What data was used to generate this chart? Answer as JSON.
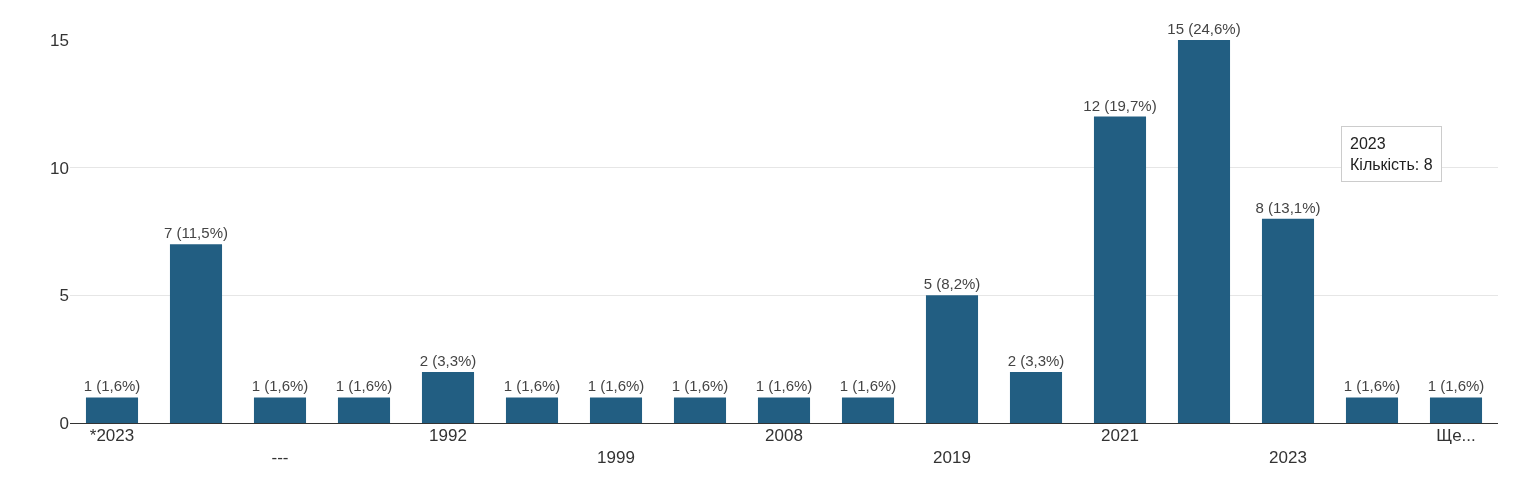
{
  "chart_data": {
    "type": "bar",
    "categories": [
      "*2023",
      null,
      "---",
      null,
      "1992",
      null,
      "1999",
      null,
      "2008",
      null,
      "2019",
      null,
      "2021",
      null,
      "2023",
      null,
      "Ще..."
    ],
    "values": [
      1,
      7,
      1,
      1,
      2,
      1,
      1,
      1,
      1,
      1,
      5,
      2,
      12,
      15,
      8,
      1,
      1
    ],
    "value_labels": [
      "1 (1,6%)",
      "7 (11,5%)",
      "1 (1,6%)",
      "1 (1,6%)",
      "2 (3,3%)",
      "1 (1,6%)",
      "1 (1,6%)",
      "1 (1,6%)",
      "1 (1,6%)",
      "1 (1,6%)",
      "5 (8,2%)",
      "2 (3,3%)",
      "12 (19,7%)",
      "15 (24,6%)",
      "8 (13,1%)",
      "1 (1,6%)",
      "1 (1,6%)"
    ],
    "color": "#225e82",
    "ylim": [
      0,
      15
    ],
    "yticks": [
      0,
      5,
      10,
      15
    ],
    "grid": "y",
    "annotations": [
      "2023\nКількість: 8"
    ]
  }
}
